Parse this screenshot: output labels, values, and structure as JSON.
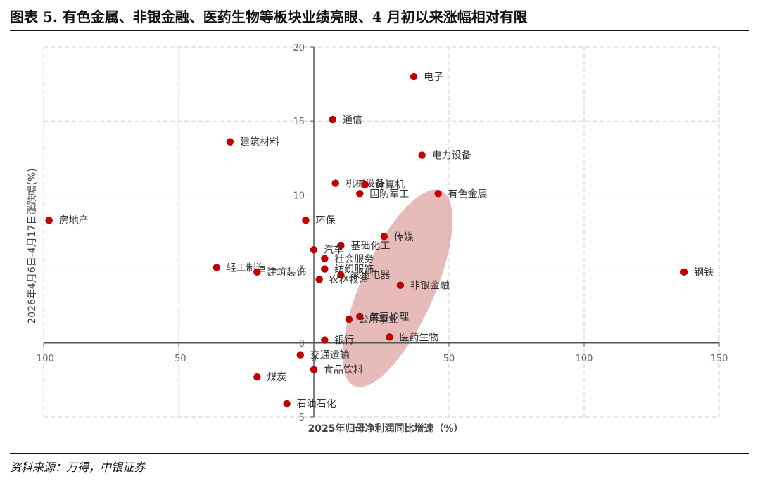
{
  "header": {
    "title": "图表 5. 有色金属、非银金融、医药生物等板块业绩亮眼、4 月初以来涨幅相对有限"
  },
  "footer": {
    "source": "资料来源：万得，中银证券"
  },
  "chart_data": {
    "type": "scatter",
    "xlabel": "2025年归母净利润同比增速（%）",
    "ylabel": "2026年4月6日-4月17日涨跌幅(%)",
    "xlim": [
      -100,
      150
    ],
    "ylim": [
      -5,
      20
    ],
    "x_ticks": [
      -100,
      -50,
      0,
      50,
      100,
      150
    ],
    "y_ticks": [
      -5,
      0,
      5,
      10,
      15,
      20
    ],
    "grid": true,
    "point_color": "#c00000",
    "highlight_color": "#d99694",
    "highlight_region": {
      "center": [
        31,
        3.7
      ],
      "radii": [
        28,
        6.6
      ],
      "rotation_deg": 55
    },
    "points": [
      {
        "label": "电子",
        "x": 37,
        "y": 18.0
      },
      {
        "label": "通信",
        "x": 7,
        "y": 15.1
      },
      {
        "label": "建筑材料",
        "x": -31,
        "y": 13.6
      },
      {
        "label": "电力设备",
        "x": 40,
        "y": 12.7
      },
      {
        "label": "机械设备",
        "x": 8,
        "y": 10.8
      },
      {
        "label": "计算机",
        "x": 19,
        "y": 10.7
      },
      {
        "label": "国防军工",
        "x": 17,
        "y": 10.1
      },
      {
        "label": "有色金属",
        "x": 46,
        "y": 10.1
      },
      {
        "label": "房地产",
        "x": -98,
        "y": 8.3
      },
      {
        "label": "环保",
        "x": -3,
        "y": 8.3
      },
      {
        "label": "传媒",
        "x": 26,
        "y": 7.2
      },
      {
        "label": "基础化工",
        "x": 10,
        "y": 6.6
      },
      {
        "label": "汽车",
        "x": 0,
        "y": 6.3
      },
      {
        "label": "社会服务",
        "x": 4,
        "y": 5.7
      },
      {
        "label": "轻工制造",
        "x": -36,
        "y": 5.1
      },
      {
        "label": "纺织服饰",
        "x": 4,
        "y": 5.0
      },
      {
        "label": "建筑装饰",
        "x": -21,
        "y": 4.8
      },
      {
        "label": "家用电器",
        "x": 10,
        "y": 4.6
      },
      {
        "label": "农林牧渔",
        "x": 2,
        "y": 4.3
      },
      {
        "label": "非银金融",
        "x": 32,
        "y": 3.9
      },
      {
        "label": "钢铁",
        "x": 137,
        "y": 4.8
      },
      {
        "label": "美容护理",
        "x": 17,
        "y": 1.8
      },
      {
        "label": "公用事业",
        "x": 13,
        "y": 1.6
      },
      {
        "label": "医药生物",
        "x": 28,
        "y": 0.4
      },
      {
        "label": "银行",
        "x": 4,
        "y": 0.2
      },
      {
        "label": "交通运输",
        "x": -5,
        "y": -0.8
      },
      {
        "label": "食品饮料",
        "x": 0,
        "y": -1.8
      },
      {
        "label": "煤炭",
        "x": -21,
        "y": -2.3
      },
      {
        "label": "石油石化",
        "x": -10,
        "y": -4.1
      }
    ]
  }
}
